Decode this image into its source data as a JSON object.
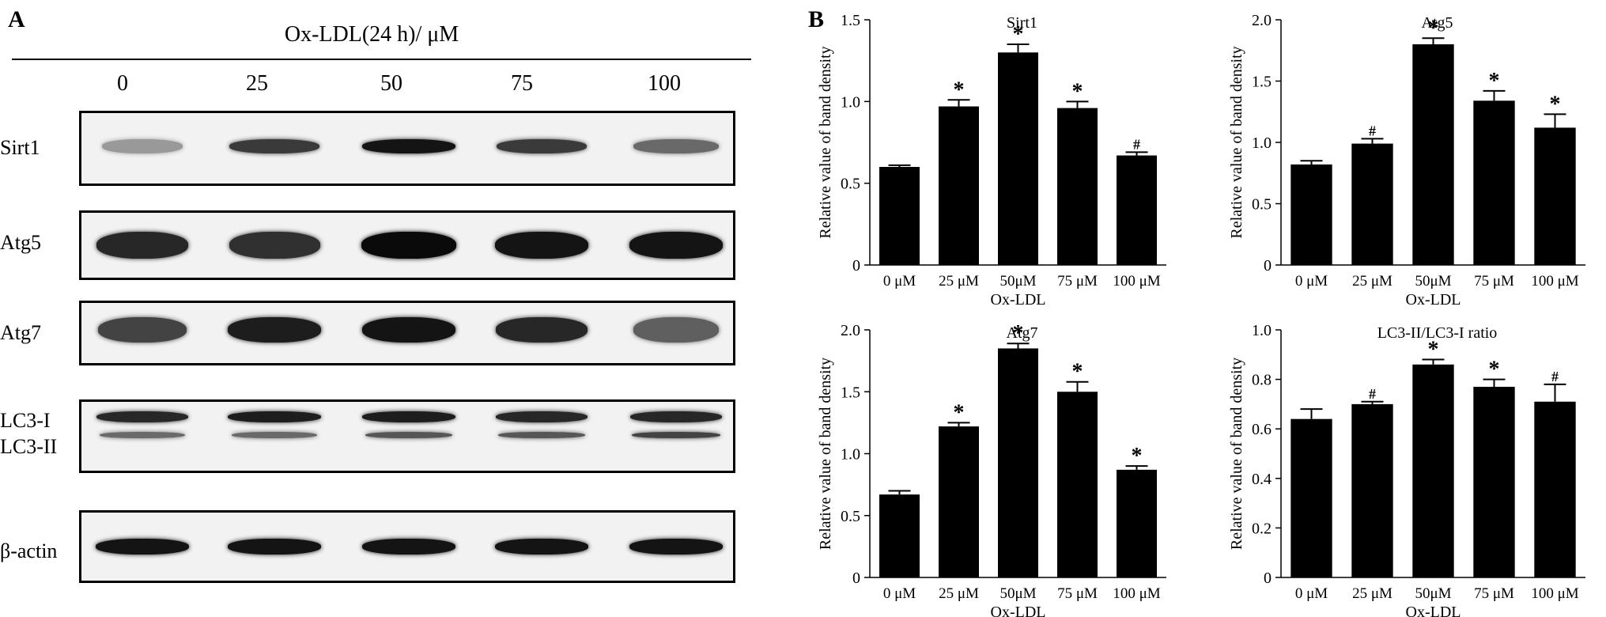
{
  "panel_a": {
    "letter": "A",
    "title": "Ox-LDL(24 h)/ μM",
    "concentrations": [
      "0",
      "25",
      "50",
      "75",
      "100"
    ],
    "blots": [
      {
        "label": "Sirt1",
        "intensities": [
          0.25,
          0.75,
          0.95,
          0.75,
          0.5
        ]
      },
      {
        "label": "Atg5",
        "intensities": [
          0.85,
          0.8,
          1.0,
          0.95,
          0.95
        ]
      },
      {
        "label": "Atg7",
        "intensities": [
          0.7,
          0.9,
          0.95,
          0.85,
          0.55
        ]
      },
      {
        "label": "LC3-I",
        "label2": "LC3-II",
        "intensities": [
          0.85,
          0.9,
          0.9,
          0.85,
          0.85
        ],
        "intensities2": [
          0.5,
          0.5,
          0.6,
          0.6,
          0.7
        ]
      },
      {
        "label": "β-actin",
        "intensities": [
          0.95,
          0.95,
          0.95,
          0.95,
          0.95
        ]
      }
    ]
  },
  "panel_b": {
    "letter": "B"
  },
  "chart_data": [
    {
      "type": "bar",
      "title": "Sirt1",
      "xlabel": "Ox-LDL",
      "ylabel": "Relative value of band density",
      "categories": [
        "0 μM",
        "25 μM",
        "50μM",
        "75 μM",
        "100 μM"
      ],
      "values": [
        0.6,
        0.97,
        1.3,
        0.96,
        0.67
      ],
      "errors": [
        0.01,
        0.04,
        0.05,
        0.04,
        0.02
      ],
      "annotations": [
        "",
        "*",
        "*",
        "*",
        "#"
      ],
      "ylim": [
        0,
        1.5
      ],
      "yticks": [
        0,
        0.5,
        1.0,
        1.5
      ],
      "ytick_labels": [
        "0",
        "0.5",
        "1.0",
        "1.5"
      ]
    },
    {
      "type": "bar",
      "title": "Atg5",
      "xlabel": "Ox-LDL",
      "ylabel": "Relative value of band density",
      "categories": [
        "0 μM",
        "25 μM",
        "50μM",
        "75 μM",
        "100 μM"
      ],
      "values": [
        0.82,
        0.99,
        1.8,
        1.34,
        1.12
      ],
      "errors": [
        0.03,
        0.04,
        0.05,
        0.08,
        0.11
      ],
      "annotations": [
        "",
        "#",
        "*",
        "*",
        "*"
      ],
      "ylim": [
        0,
        2.0
      ],
      "yticks": [
        0,
        0.5,
        1.0,
        1.5,
        2.0
      ],
      "ytick_labels": [
        "0",
        "0.5",
        "1.0",
        "1.5",
        "2.0"
      ]
    },
    {
      "type": "bar",
      "title": "Atg7",
      "xlabel": "Ox-LDL",
      "ylabel": "Relative value of band density",
      "categories": [
        "0 μM",
        "25 μM",
        "50μM",
        "75 μM",
        "100 μM"
      ],
      "values": [
        0.67,
        1.22,
        1.85,
        1.5,
        0.87
      ],
      "errors": [
        0.03,
        0.03,
        0.04,
        0.08,
        0.03
      ],
      "annotations": [
        "",
        "*",
        "*",
        "*",
        "*"
      ],
      "ylim": [
        0,
        2.0
      ],
      "yticks": [
        0,
        0.5,
        1.0,
        1.5,
        2.0
      ],
      "ytick_labels": [
        "0",
        "0.5",
        "1.0",
        "1.5",
        "2.0"
      ]
    },
    {
      "type": "bar",
      "title": "LC3-II/LC3-I ratio",
      "xlabel": "Ox-LDL",
      "ylabel": "Relative value of band density",
      "categories": [
        "0 μM",
        "25 μM",
        "50μM",
        "75 μM",
        "100 μM"
      ],
      "values": [
        0.64,
        0.7,
        0.86,
        0.77,
        0.71
      ],
      "errors": [
        0.04,
        0.01,
        0.02,
        0.03,
        0.07
      ],
      "annotations": [
        "",
        "#",
        "*",
        "*",
        "#"
      ],
      "ylim": [
        0,
        1.0
      ],
      "yticks": [
        0,
        0.2,
        0.4,
        0.6,
        0.8,
        1.0
      ],
      "ytick_labels": [
        "0",
        "0.2",
        "0.4",
        "0.6",
        "0.8",
        "1.0"
      ]
    }
  ]
}
